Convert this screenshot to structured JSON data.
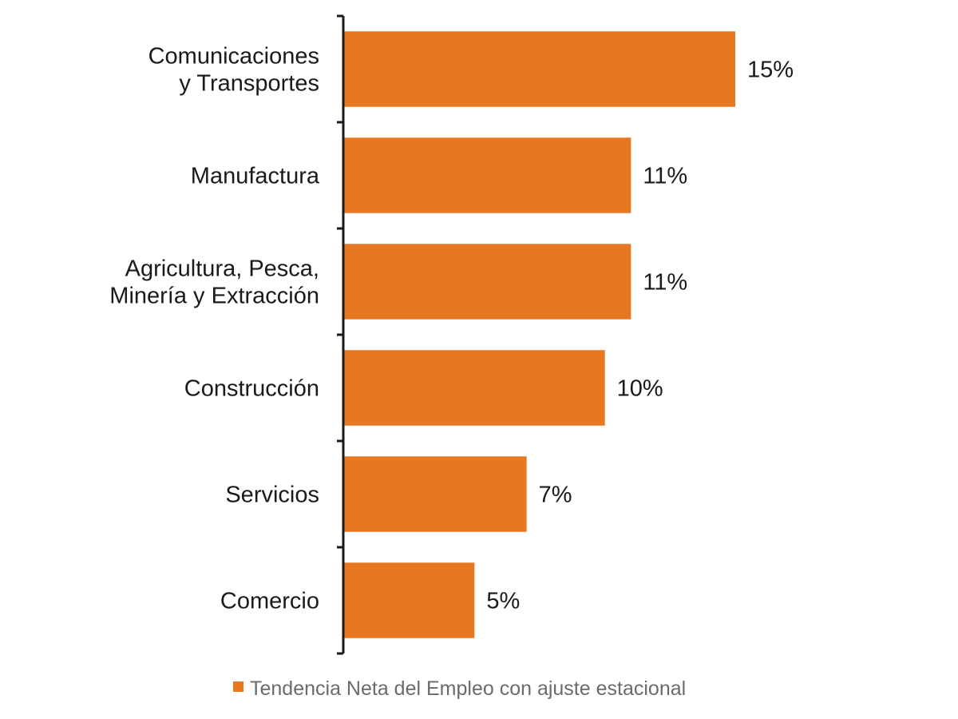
{
  "chart_data": {
    "type": "bar",
    "orientation": "horizontal",
    "categories": [
      [
        "Comunicaciones",
        "y Transportes"
      ],
      [
        "Manufactura"
      ],
      [
        "Agricultura, Pesca,",
        "Minería y Extracción"
      ],
      [
        "Construcción"
      ],
      [
        "Servicios"
      ],
      [
        "Comercio"
      ]
    ],
    "values": [
      15,
      11,
      11,
      10,
      7,
      5
    ],
    "value_labels": [
      "15%",
      "11%",
      "11%",
      "10%",
      "7%",
      "5%"
    ],
    "series": [
      {
        "name": "Tendencia Neta del Empleo con ajuste estacional",
        "color": "#E87722"
      }
    ],
    "xlim": [
      0,
      15
    ],
    "grid": false,
    "legend_position": "bottom"
  },
  "colors": {
    "bar": "#E87722",
    "axis": "#1a1a1a",
    "text": "#1a1a1a",
    "legend_text": "#6b6b6b"
  }
}
